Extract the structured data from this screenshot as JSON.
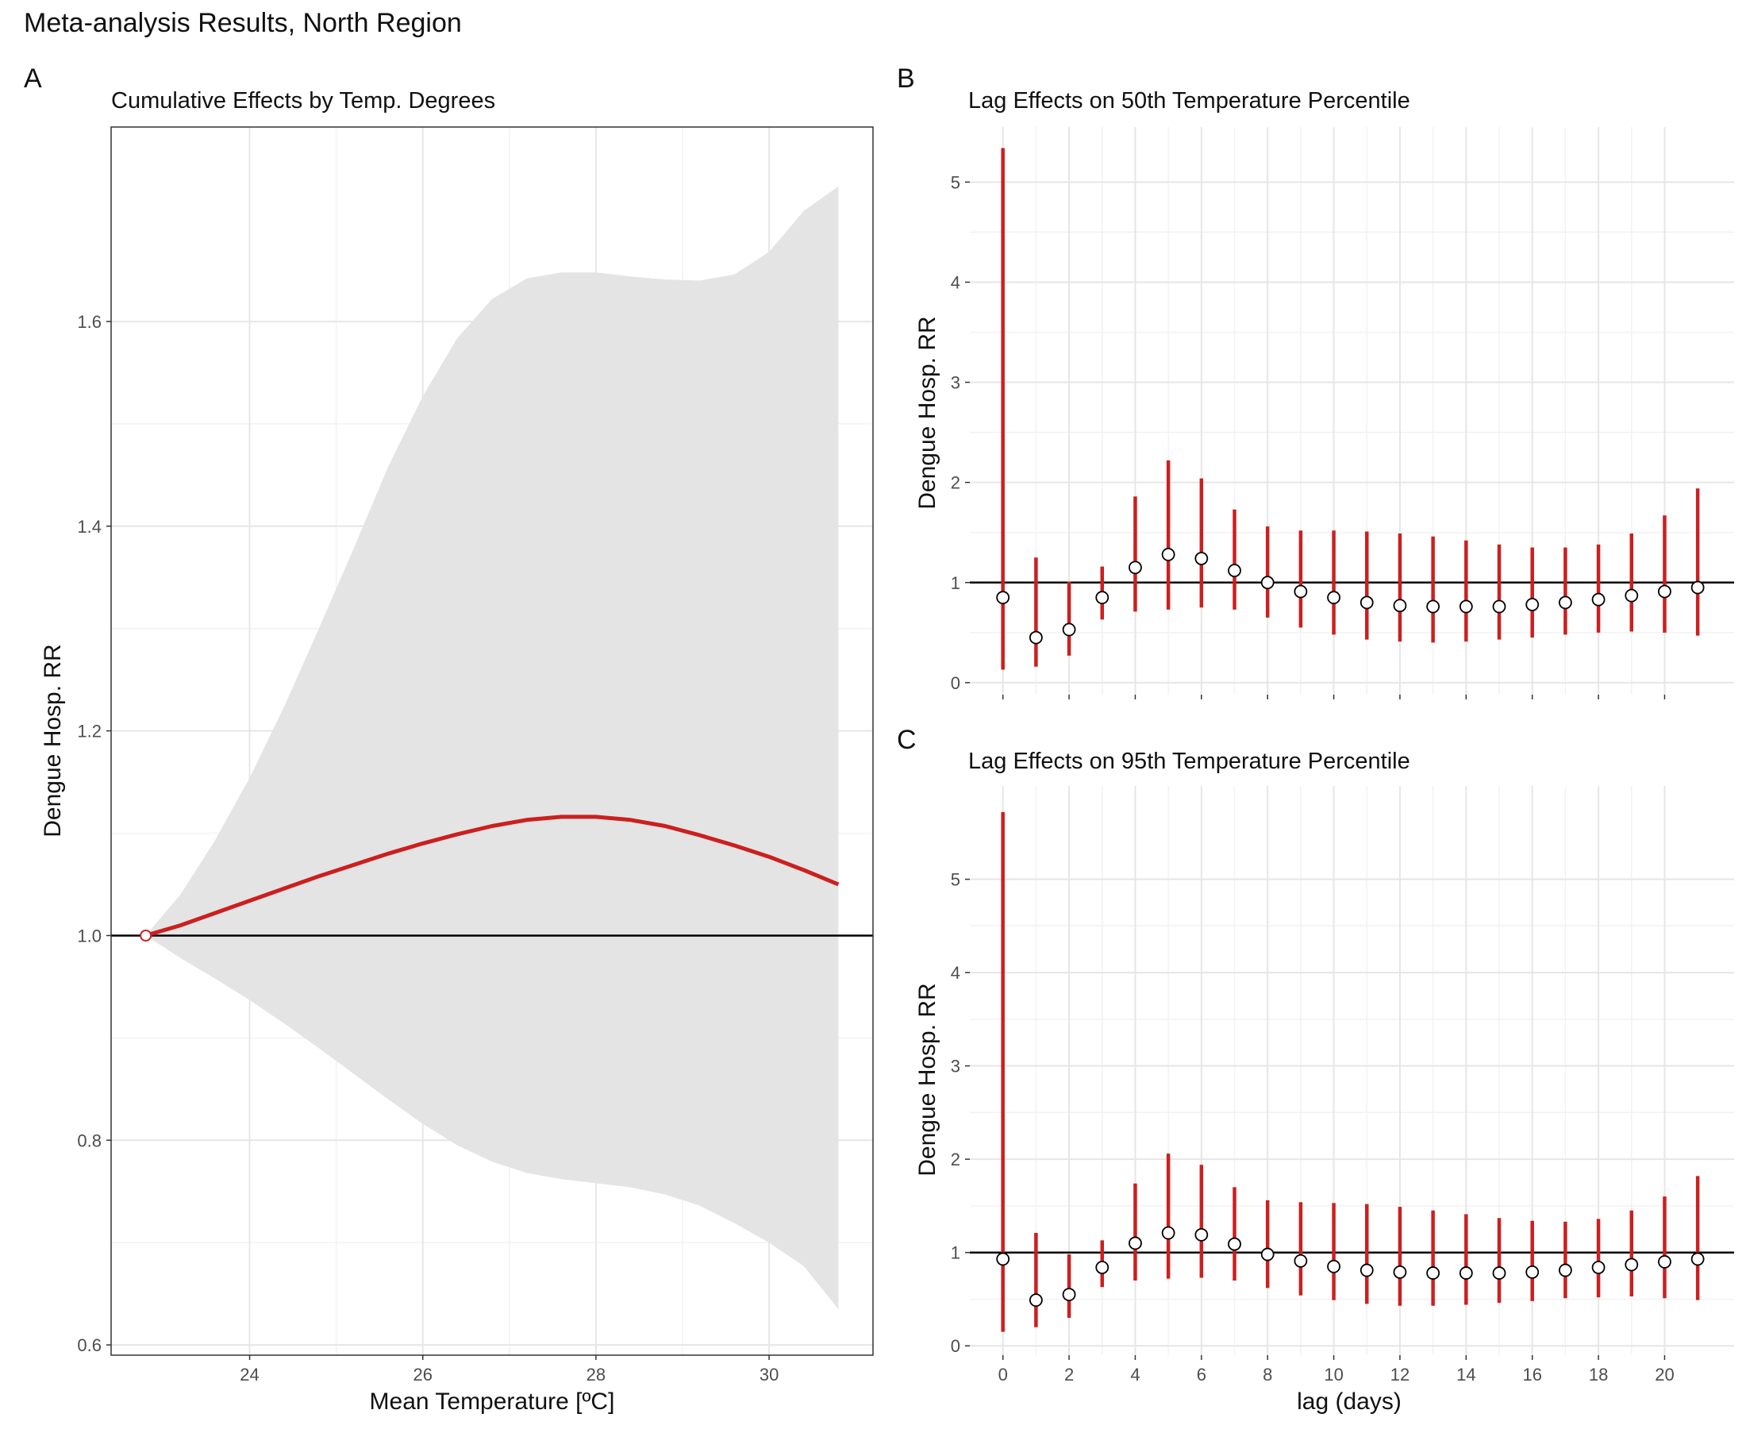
{
  "figure": {
    "title": "Meta-analysis Results, North Region"
  },
  "colors": {
    "effect": "#cc1f1f",
    "ci_band": "#e4e4e4",
    "point_fill": "#ffffff",
    "reference_line": "#000000"
  },
  "chart_data": [
    {
      "id": "A",
      "tag": "A",
      "type": "line",
      "title": "Cumulative Effects by Temp. Degrees",
      "xlabel": "Mean Temperature [ºC]",
      "ylabel": "Dengue Hosp. RR",
      "xlim": [
        22.4,
        31.2
      ],
      "ylim": [
        0.59,
        1.79
      ],
      "xticks": [
        24,
        26,
        28,
        30
      ],
      "yticks": [
        0.6,
        0.8,
        1.0,
        1.2,
        1.4,
        1.6
      ],
      "ytick_labels": [
        "0.6",
        "0.8",
        "1.0",
        "1.2",
        "1.4",
        "1.6"
      ],
      "reference_y": 1.0,
      "reference_point": {
        "x": 22.8,
        "y": 1.0
      },
      "grid": true,
      "frame": true,
      "x": [
        22.8,
        23.2,
        23.6,
        24.0,
        24.4,
        24.8,
        25.2,
        25.6,
        26.0,
        26.4,
        26.8,
        27.2,
        27.6,
        28.0,
        28.4,
        28.8,
        29.2,
        29.6,
        30.0,
        30.4,
        30.8
      ],
      "series": [
        {
          "values": [
            1.0,
            1.01,
            1.022,
            1.034,
            1.046,
            1.058,
            1.069,
            1.08,
            1.09,
            1.099,
            1.107,
            1.113,
            1.116,
            1.116,
            1.113,
            1.107,
            1.098,
            1.088,
            1.077,
            1.064,
            1.05
          ],
          "lower": [
            1.0,
            0.978,
            0.958,
            0.937,
            0.914,
            0.89,
            0.865,
            0.84,
            0.816,
            0.795,
            0.779,
            0.768,
            0.762,
            0.758,
            0.754,
            0.747,
            0.736,
            0.719,
            0.7,
            0.677,
            0.635
          ],
          "upper": [
            1.0,
            1.04,
            1.093,
            1.154,
            1.224,
            1.3,
            1.378,
            1.458,
            1.527,
            1.584,
            1.622,
            1.642,
            1.648,
            1.648,
            1.644,
            1.641,
            1.64,
            1.646,
            1.668,
            1.708,
            1.732
          ]
        }
      ]
    },
    {
      "id": "B",
      "tag": "B",
      "type": "scatter",
      "title": "Lag Effects on 50th Temperature Percentile",
      "xlabel": "",
      "ylabel": "Dengue Hosp. RR",
      "xlim": [
        -1,
        22.1
      ],
      "ylim": [
        -0.12,
        5.55
      ],
      "xticks": [
        0,
        2,
        4,
        6,
        8,
        10,
        12,
        14,
        16,
        18,
        20
      ],
      "yticks": [
        0,
        1,
        2,
        3,
        4,
        5
      ],
      "reference_y": 1,
      "grid": true,
      "x": [
        0,
        1,
        2,
        3,
        4,
        5,
        6,
        7,
        8,
        9,
        10,
        11,
        12,
        13,
        14,
        15,
        16,
        17,
        18,
        19,
        20,
        21
      ],
      "series": [
        {
          "values": [
            0.85,
            0.45,
            0.53,
            0.85,
            1.15,
            1.28,
            1.24,
            1.12,
            1.0,
            0.91,
            0.85,
            0.8,
            0.77,
            0.76,
            0.76,
            0.76,
            0.78,
            0.8,
            0.83,
            0.87,
            0.91,
            0.95
          ],
          "lower": [
            0.13,
            0.16,
            0.27,
            0.63,
            0.71,
            0.73,
            0.75,
            0.73,
            0.65,
            0.55,
            0.48,
            0.43,
            0.41,
            0.4,
            0.41,
            0.43,
            0.45,
            0.48,
            0.5,
            0.51,
            0.5,
            0.47
          ],
          "upper": [
            5.34,
            1.25,
            1.01,
            1.16,
            1.86,
            2.22,
            2.04,
            1.73,
            1.56,
            1.52,
            1.52,
            1.51,
            1.49,
            1.46,
            1.42,
            1.38,
            1.35,
            1.35,
            1.38,
            1.49,
            1.67,
            1.94
          ]
        }
      ]
    },
    {
      "id": "C",
      "tag": "C",
      "type": "scatter",
      "title": "Lag Effects on 95th Temperature Percentile",
      "xlabel": "lag (days)",
      "ylabel": "Dengue Hosp. RR",
      "xlim": [
        -1,
        22.1
      ],
      "ylim": [
        -0.1,
        6.0
      ],
      "xticks": [
        0,
        2,
        4,
        6,
        8,
        10,
        12,
        14,
        16,
        18,
        20
      ],
      "yticks": [
        0,
        1,
        2,
        3,
        4,
        5
      ],
      "reference_y": 1,
      "grid": true,
      "x": [
        0,
        1,
        2,
        3,
        4,
        5,
        6,
        7,
        8,
        9,
        10,
        11,
        12,
        13,
        14,
        15,
        16,
        17,
        18,
        19,
        20,
        21
      ],
      "series": [
        {
          "values": [
            0.93,
            0.49,
            0.55,
            0.84,
            1.1,
            1.21,
            1.19,
            1.09,
            0.98,
            0.91,
            0.85,
            0.81,
            0.79,
            0.78,
            0.78,
            0.78,
            0.79,
            0.81,
            0.84,
            0.87,
            0.9,
            0.93
          ],
          "lower": [
            0.15,
            0.2,
            0.3,
            0.63,
            0.7,
            0.72,
            0.73,
            0.7,
            0.62,
            0.54,
            0.49,
            0.45,
            0.43,
            0.43,
            0.44,
            0.46,
            0.48,
            0.51,
            0.52,
            0.53,
            0.51,
            0.49
          ],
          "upper": [
            5.72,
            1.21,
            0.98,
            1.13,
            1.74,
            2.06,
            1.94,
            1.7,
            1.56,
            1.54,
            1.53,
            1.52,
            1.49,
            1.45,
            1.41,
            1.37,
            1.34,
            1.33,
            1.36,
            1.45,
            1.6,
            1.82
          ]
        }
      ]
    }
  ]
}
